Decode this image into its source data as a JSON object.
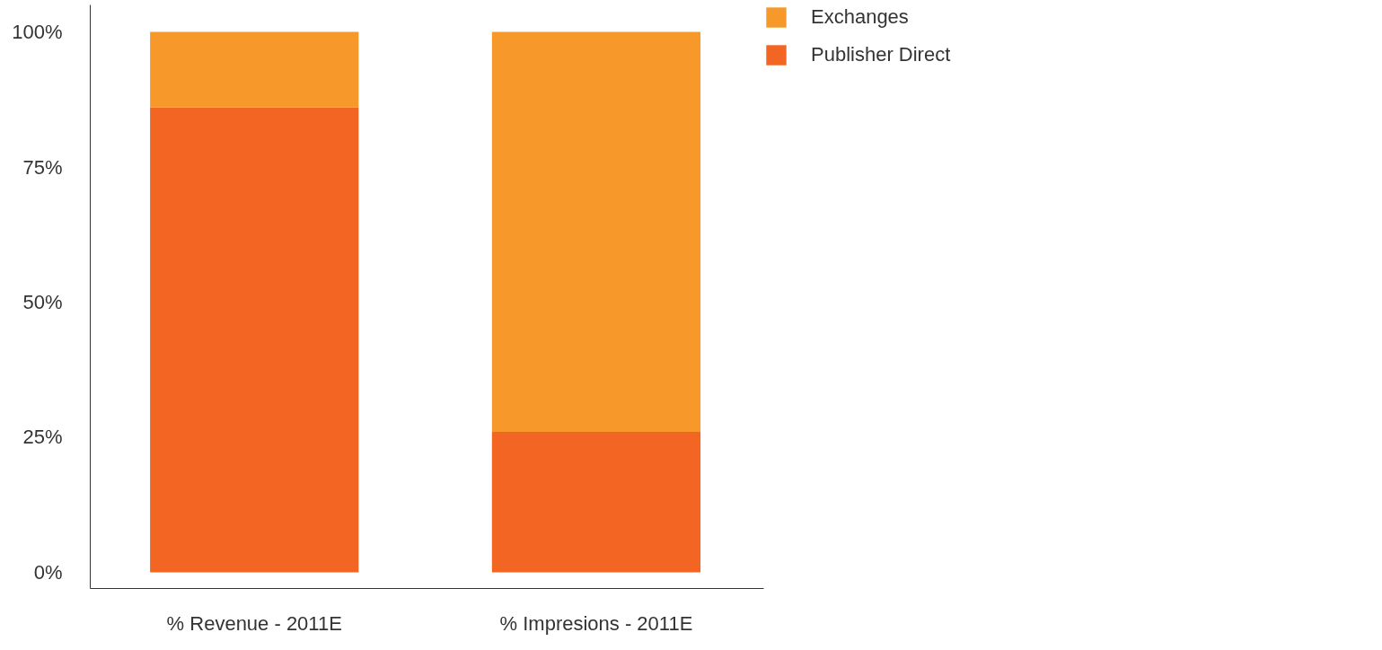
{
  "chart_data": {
    "type": "bar",
    "stacked": true,
    "categories": [
      "% Revenue - 2011E",
      "% Impresions - 2011E"
    ],
    "series": [
      {
        "name": "Publisher Direct",
        "color": "#f26522",
        "values": [
          86,
          26
        ]
      },
      {
        "name": "Exchanges",
        "color": "#f7992a",
        "values": [
          14,
          74
        ]
      }
    ],
    "ylim": [
      -3,
      105
    ],
    "yticks": [
      {
        "value": 0,
        "label": "0%"
      },
      {
        "value": 25,
        "label": "25%"
      },
      {
        "value": 50,
        "label": "50%"
      },
      {
        "value": 75,
        "label": "75%"
      },
      {
        "value": 100,
        "label": "100%"
      }
    ],
    "grid": false,
    "legend": "top right"
  }
}
